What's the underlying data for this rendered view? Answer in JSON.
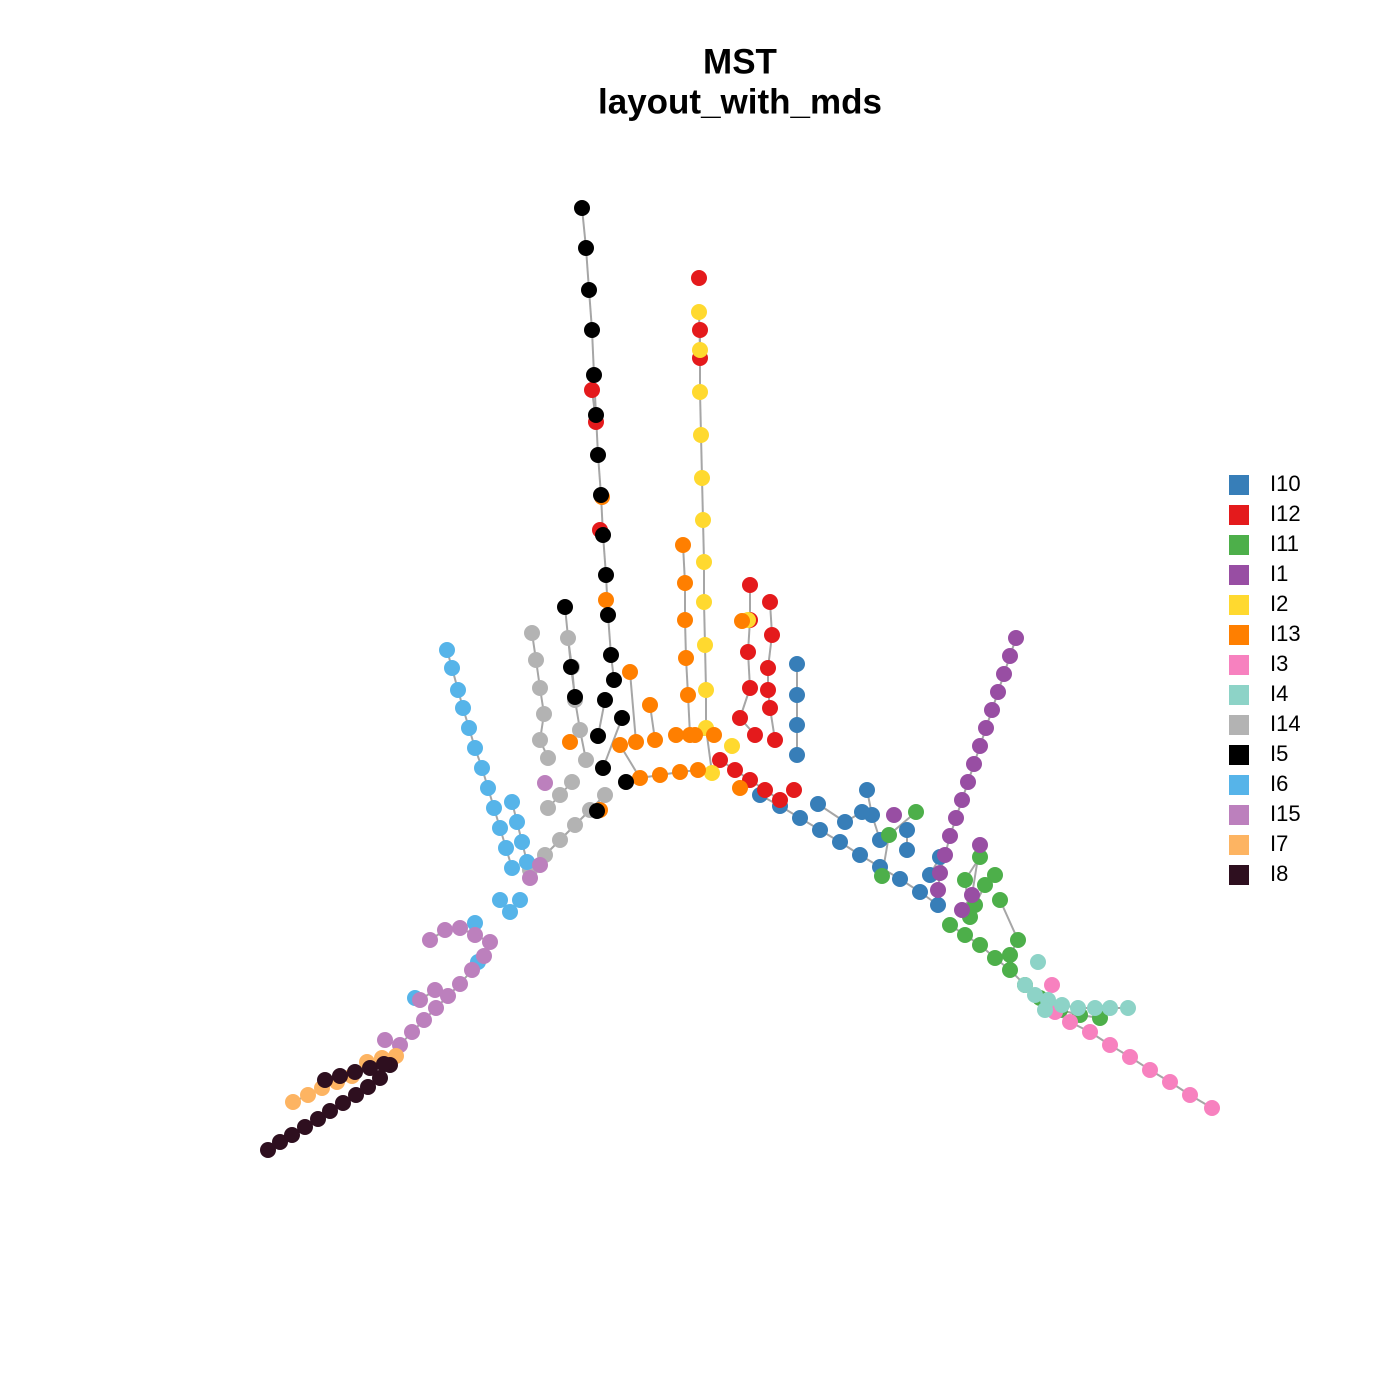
{
  "chart_data": {
    "type": "scatter",
    "title": "MST",
    "subtitle": "layout_with_mds",
    "series": [
      {
        "name": "I10",
        "color": "#377eb8",
        "x": [
          760,
          780,
          800,
          820,
          840,
          860,
          880,
          900,
          920,
          938,
          null,
          797,
          797,
          797,
          797,
          null,
          867,
          872,
          880,
          null,
          907,
          907,
          null,
          862,
          845,
          818,
          null,
          940,
          930
        ],
        "y": [
          -795,
          -806,
          -818,
          -830,
          -842,
          -855,
          -867,
          -879,
          -892,
          -905,
          null,
          -664,
          -695,
          -725,
          -755,
          null,
          -790,
          -815,
          -840,
          null,
          -830,
          -850,
          null,
          -812,
          -822,
          -804,
          null,
          -857,
          -875
        ]
      },
      {
        "name": "I12",
        "color": "#e41a1c",
        "x": [
          699,
          null,
          700,
          700,
          null,
          592,
          596,
          null,
          600,
          null,
          750,
          750,
          748,
          750,
          740,
          755,
          null,
          770,
          772,
          768,
          768,
          770,
          775,
          null,
          720,
          735,
          750,
          765,
          780,
          null,
          794
        ],
        "y": [
          -278,
          null,
          -330,
          -358,
          null,
          -390,
          -422,
          null,
          -530,
          null,
          -585,
          -620,
          -652,
          -688,
          -718,
          -735,
          null,
          -602,
          -635,
          -668,
          -690,
          -708,
          -740,
          null,
          -760,
          -770,
          -780,
          -790,
          -800,
          null,
          -790
        ]
      },
      {
        "name": "I11",
        "color": "#4daf4a",
        "x": [
          916,
          889,
          882,
          null,
          950,
          965,
          980,
          995,
          1010,
          1025,
          1040,
          1060,
          1080,
          1100,
          null,
          980,
          965,
          970,
          null,
          995,
          985,
          975,
          null,
          1000,
          1018,
          1010
        ],
        "y": [
          -812,
          -835,
          -876,
          null,
          -925,
          -935,
          -945,
          -958,
          -970,
          -985,
          -998,
          -1010,
          -1015,
          -1018,
          null,
          -857,
          -880,
          -917,
          null,
          -875,
          -885,
          -905,
          null,
          -900,
          -940,
          -955
        ]
      },
      {
        "name": "I1",
        "color": "#984ea3",
        "x": [
          1016,
          1010,
          1004,
          998,
          992,
          986,
          980,
          974,
          968,
          962,
          956,
          950,
          945,
          940,
          938,
          null,
          894,
          null,
          980,
          972,
          962
        ],
        "y": [
          -638,
          -656,
          -674,
          -692,
          -710,
          -728,
          -746,
          -764,
          -782,
          -800,
          -818,
          -836,
          -855,
          -873,
          -890,
          null,
          -815,
          null,
          -845,
          -895,
          -910
        ]
      },
      {
        "name": "I2",
        "color": "#ffd92f",
        "x": [
          699,
          700,
          700,
          701,
          702,
          703,
          704,
          704,
          705,
          706,
          706,
          712,
          null,
          732,
          null,
          748
        ],
        "y": [
          -312,
          -350,
          -392,
          -435,
          -478,
          -520,
          -562,
          -602,
          -645,
          -690,
          -728,
          -773,
          null,
          -746,
          null,
          -620
        ]
      },
      {
        "name": "I13",
        "color": "#ff7f00",
        "x": [
          683,
          685,
          685,
          686,
          688,
          690,
          null,
          570,
          null,
          600,
          null,
          630,
          636,
          null,
          650,
          655,
          null,
          620,
          640,
          660,
          680,
          698,
          null,
          740,
          null,
          676,
          695,
          714,
          null,
          742,
          null,
          602,
          null,
          606
        ],
        "y": [
          -545,
          -583,
          -620,
          -658,
          -695,
          -735,
          null,
          -742,
          null,
          -810,
          null,
          -672,
          -742,
          null,
          -705,
          -740,
          null,
          -745,
          -778,
          -775,
          -772,
          -770,
          null,
          -788,
          null,
          -735,
          -735,
          -735,
          null,
          -621,
          null,
          -497,
          null,
          -600
        ]
      },
      {
        "name": "I3",
        "color": "#f781bf",
        "x": [
          1052,
          null,
          1055,
          1070,
          1090,
          1110,
          1130,
          1150,
          1170,
          1190,
          1212
        ],
        "y": [
          -985,
          null,
          -1012,
          -1022,
          -1032,
          -1045,
          -1057,
          -1070,
          -1082,
          -1095,
          -1108
        ]
      },
      {
        "name": "I4",
        "color": "#8dd3c7",
        "x": [
          1038,
          null,
          1025,
          1035,
          1048,
          1062,
          1078,
          1095,
          1110,
          1128,
          null,
          1045
        ],
        "y": [
          -962,
          null,
          -985,
          -995,
          -1000,
          -1005,
          -1008,
          -1008,
          -1008,
          -1008,
          null,
          -1010
        ]
      },
      {
        "name": "I14",
        "color": "#b3b3b3",
        "x": [
          532,
          536,
          540,
          544,
          540,
          548,
          null,
          568,
          572,
          575,
          580,
          586,
          null,
          530,
          545,
          560,
          575,
          590,
          605,
          null,
          548,
          560,
          572
        ],
        "y": [
          -633,
          -660,
          -688,
          -714,
          -740,
          -758,
          null,
          -638,
          -667,
          -700,
          -730,
          -760,
          null,
          -870,
          -855,
          -840,
          -825,
          -810,
          -795,
          null,
          -808,
          -795,
          -782
        ]
      },
      {
        "name": "I5",
        "color": "#000000",
        "x": [
          582,
          586,
          589,
          592,
          594,
          596,
          598,
          601,
          603,
          606,
          608,
          611,
          614,
          null,
          565,
          571,
          575,
          null,
          605,
          598,
          null,
          622,
          603,
          null,
          597,
          null,
          626
        ],
        "y": [
          -208,
          -248,
          -290,
          -330,
          -375,
          -415,
          -455,
          -495,
          -535,
          -575,
          -615,
          -655,
          -680,
          null,
          -607,
          -667,
          -697,
          null,
          -700,
          -736,
          null,
          -718,
          -768,
          null,
          -811,
          null,
          -782
        ]
      },
      {
        "name": "I6",
        "color": "#56b4e9",
        "x": [
          447,
          452,
          458,
          463,
          469,
          475,
          482,
          488,
          494,
          500,
          506,
          512,
          null,
          512,
          517,
          522,
          527,
          null,
          500,
          510,
          520,
          null,
          475,
          null,
          478,
          null,
          415
        ],
        "y": [
          -650,
          -668,
          -690,
          -708,
          -728,
          -748,
          -768,
          -788,
          -808,
          -828,
          -848,
          -868,
          null,
          -802,
          -822,
          -842,
          -862,
          null,
          -900,
          -912,
          -900,
          null,
          -923,
          null,
          -962,
          null,
          -998
        ]
      },
      {
        "name": "I15",
        "color": "#bc80bd",
        "x": [
          400,
          412,
          424,
          436,
          448,
          460,
          472,
          484,
          null,
          430,
          445,
          460,
          475,
          490,
          null,
          420,
          435,
          null,
          385,
          null,
          545,
          null,
          540,
          530
        ],
        "y": [
          -1045,
          -1032,
          -1020,
          -1008,
          -996,
          -984,
          -970,
          -956,
          null,
          -940,
          -930,
          -928,
          -935,
          -942,
          null,
          -1000,
          -990,
          null,
          -1040,
          null,
          -783,
          null,
          -865,
          -878
        ]
      },
      {
        "name": "I7",
        "color": "#fdb462",
        "x": [
          293,
          308,
          322,
          337,
          352,
          null,
          367,
          382,
          396
        ],
        "y": [
          -1102,
          -1095,
          -1088,
          -1082,
          -1076,
          null,
          -1062,
          -1058,
          -1056
        ]
      },
      {
        "name": "I8",
        "color": "#2e0f1f",
        "x": [
          268,
          280,
          292,
          305,
          318,
          330,
          343,
          356,
          368,
          380,
          390,
          null,
          325,
          340,
          355,
          370,
          384
        ],
        "y": [
          -1150,
          -1142,
          -1135,
          -1127,
          -1119,
          -1111,
          -1103,
          -1095,
          -1087,
          -1078,
          -1065,
          null,
          -1080,
          -1076,
          -1072,
          -1068,
          -1064
        ]
      }
    ]
  }
}
